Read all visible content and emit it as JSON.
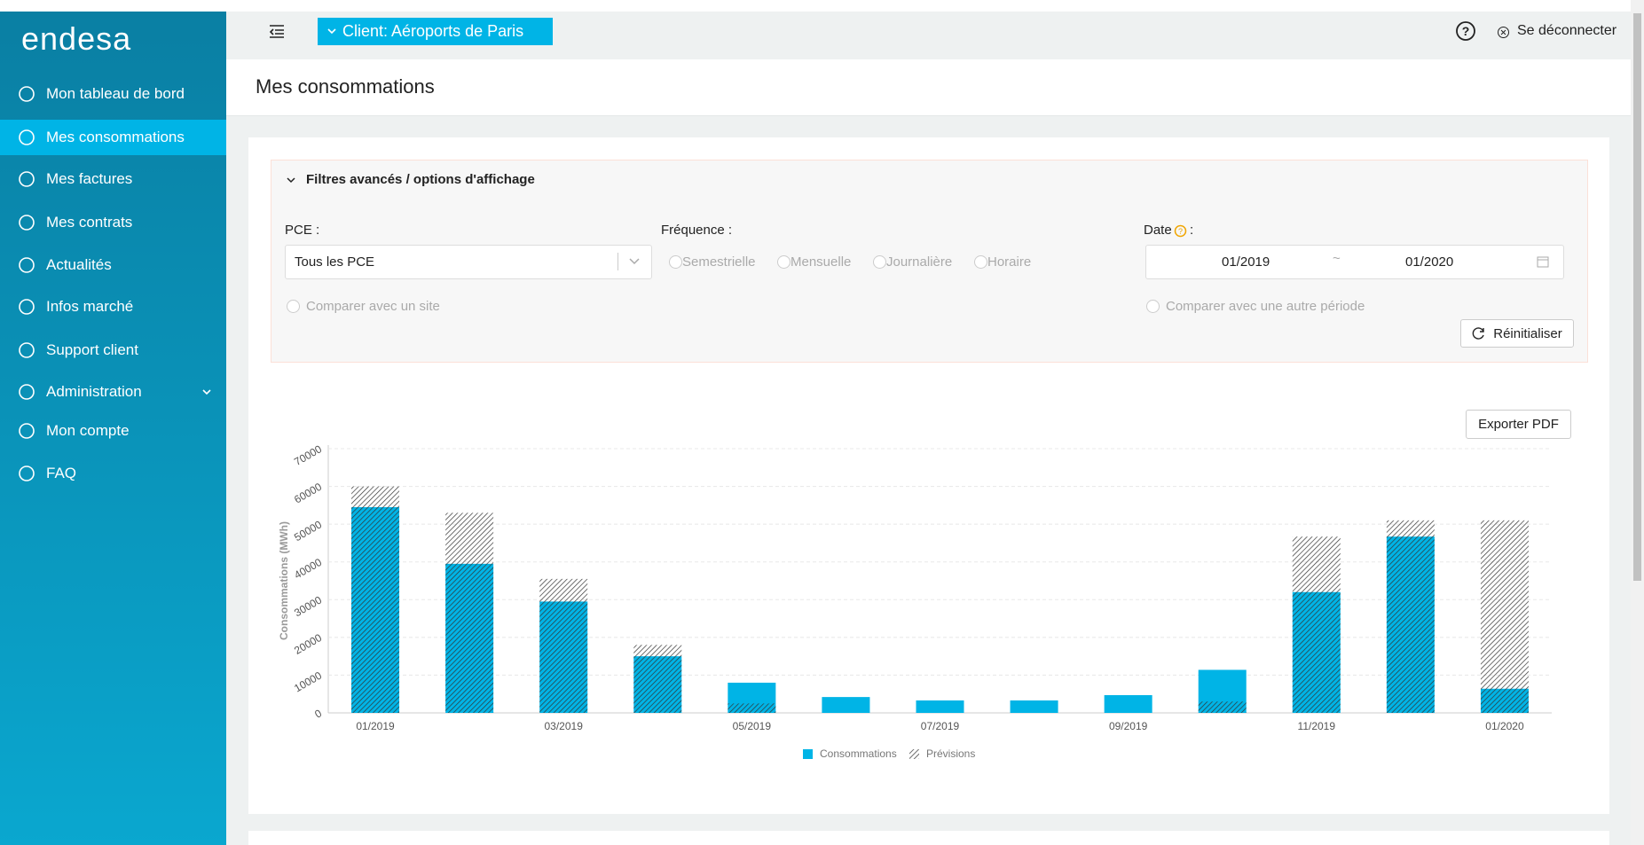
{
  "sidebar": {
    "logo": "endesa",
    "items": [
      "Mon tableau de bord",
      "Mes consommations",
      "Mes factures",
      "Mes contrats",
      "Actualités",
      "Infos marché",
      "Support client",
      "Administration",
      "Mon compte",
      "FAQ"
    ],
    "active": 1
  },
  "header": {
    "client": "Client: Aéroports de Paris",
    "logout": "Se déconnecter"
  },
  "page_title": "Mes consommations",
  "filters": {
    "title": "Filtres avancés / options d'affichage",
    "pce_label": "PCE :",
    "pce_value": "Tous les PCE",
    "frequency_label": "Fréquence :",
    "frequencies": [
      "Semestrielle",
      "Mensuelle",
      "Journalière",
      "Horaire"
    ],
    "compare_site": "Comparer avec un site",
    "date_label": "Date",
    "date_from": "01/2019",
    "date_separator": "~",
    "date_to": "01/2020",
    "compare_period": "Comparer avec une autre période",
    "reset": "Réinitialiser"
  },
  "export": "Exporter PDF",
  "chart_data": {
    "type": "bar",
    "y_label": "Consommations (MWh)",
    "categories": [
      "01/2019",
      null,
      "03/2019",
      null,
      "05/2019",
      null,
      "07/2019",
      null,
      "09/2019",
      null,
      "11/2019",
      null,
      "01/2020"
    ],
    "series": [
      {
        "name": "Consommations",
        "color": "#00b4e6",
        "values": [
          54500,
          39500,
          29500,
          15000,
          8000,
          4200,
          3300,
          3300,
          4700,
          11400,
          32000,
          46700,
          6400
        ]
      },
      {
        "name": "Prévisions",
        "color": "#333333",
        "pattern": "hatch",
        "values": [
          60000,
          53000,
          35500,
          18000,
          2500,
          0,
          0,
          0,
          0,
          3000,
          46700,
          51000,
          51000
        ]
      }
    ],
    "ylim": [
      0,
      70000
    ],
    "yticks": [
      0,
      10000,
      20000,
      30000,
      40000,
      50000,
      60000,
      70000
    ],
    "grid": true
  }
}
